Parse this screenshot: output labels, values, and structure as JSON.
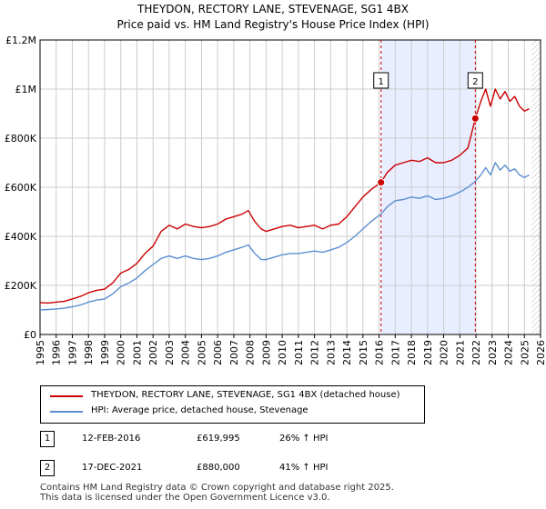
{
  "title_line1": "THEYDON, RECTORY LANE, STEVENAGE, SG1 4BX",
  "title_line2": "Price paid vs. HM Land Registry's House Price Index (HPI)",
  "colors": {
    "property": "#cc0000",
    "hpi": "#5b8fd0",
    "shade": "#e8eeff",
    "grid": "#cccccc"
  },
  "chart_data": {
    "type": "line",
    "title": "THEYDON, RECTORY LANE, STEVENAGE, SG1 4BX",
    "subtitle": "Price paid vs. HM Land Registry's House Price Index (HPI)",
    "xlim": [
      1995,
      2026
    ],
    "ylim": [
      0,
      1200000
    ],
    "yticks": [
      0,
      200000,
      400000,
      600000,
      800000,
      1000000,
      1200000
    ],
    "ytick_labels": [
      "£0",
      "£200K",
      "£400K",
      "£600K",
      "£800K",
      "£1M",
      "£1.2M"
    ],
    "xticks": [
      "1995",
      "1996",
      "1997",
      "1998",
      "1999",
      "2000",
      "2001",
      "2002",
      "2003",
      "2004",
      "2005",
      "2006",
      "2007",
      "2008",
      "2009",
      "2010",
      "2011",
      "2012",
      "2013",
      "2014",
      "2015",
      "2016",
      "2017",
      "2018",
      "2019",
      "2020",
      "2021",
      "2022",
      "2023",
      "2024",
      "2025",
      "2026"
    ],
    "shaded_region": [
      2016.12,
      2021.96
    ],
    "series": [
      {
        "name": "THEYDON, RECTORY LANE, STEVENAGE, SG1 4BX (detached house)",
        "color": "#cc0000",
        "x": [
          1995.0,
          1995.5,
          1996.0,
          1996.5,
          1997.0,
          1997.5,
          1998.0,
          1998.5,
          1999.0,
          1999.5,
          2000.0,
          2000.5,
          2001.0,
          2001.5,
          2002.0,
          2002.5,
          2003.0,
          2003.5,
          2004.0,
          2004.5,
          2005.0,
          2005.5,
          2006.0,
          2006.5,
          2007.0,
          2007.5,
          2007.9,
          2008.3,
          2008.7,
          2009.0,
          2009.5,
          2010.0,
          2010.5,
          2011.0,
          2011.5,
          2012.0,
          2012.5,
          2013.0,
          2013.5,
          2014.0,
          2014.5,
          2015.0,
          2015.5,
          2016.12,
          2016.5,
          2017.0,
          2017.5,
          2018.0,
          2018.5,
          2019.0,
          2019.5,
          2020.0,
          2020.5,
          2021.0,
          2021.5,
          2021.96,
          2022.3,
          2022.6,
          2022.9,
          2023.2,
          2023.5,
          2023.8,
          2024.1,
          2024.4,
          2024.7,
          2025.0,
          2025.3
        ],
        "values": [
          130000,
          128000,
          132000,
          135000,
          145000,
          155000,
          170000,
          180000,
          185000,
          210000,
          250000,
          265000,
          290000,
          330000,
          360000,
          420000,
          445000,
          430000,
          450000,
          440000,
          435000,
          440000,
          450000,
          470000,
          480000,
          490000,
          505000,
          460000,
          430000,
          420000,
          430000,
          440000,
          445000,
          435000,
          440000,
          445000,
          430000,
          445000,
          450000,
          480000,
          520000,
          560000,
          590000,
          619995,
          660000,
          690000,
          700000,
          710000,
          705000,
          720000,
          700000,
          700000,
          710000,
          730000,
          760000,
          880000,
          950000,
          1000000,
          930000,
          1000000,
          960000,
          990000,
          950000,
          970000,
          930000,
          910000,
          920000
        ]
      },
      {
        "name": "HPI: Average price, detached house, Stevenage",
        "color": "#5b8fd0",
        "x": [
          1995.0,
          1995.5,
          1996.0,
          1996.5,
          1997.0,
          1997.5,
          1998.0,
          1998.5,
          1999.0,
          1999.5,
          2000.0,
          2000.5,
          2001.0,
          2001.5,
          2002.0,
          2002.5,
          2003.0,
          2003.5,
          2004.0,
          2004.5,
          2005.0,
          2005.5,
          2006.0,
          2006.5,
          2007.0,
          2007.5,
          2007.9,
          2008.3,
          2008.7,
          2009.0,
          2009.5,
          2010.0,
          2010.5,
          2011.0,
          2011.5,
          2012.0,
          2012.5,
          2013.0,
          2013.5,
          2014.0,
          2014.5,
          2015.0,
          2015.5,
          2016.12,
          2016.5,
          2017.0,
          2017.5,
          2018.0,
          2018.5,
          2019.0,
          2019.5,
          2020.0,
          2020.5,
          2021.0,
          2021.5,
          2021.96,
          2022.3,
          2022.6,
          2022.9,
          2023.2,
          2023.5,
          2023.8,
          2024.1,
          2024.4,
          2024.7,
          2025.0,
          2025.3
        ],
        "values": [
          100000,
          102000,
          104000,
          107000,
          113000,
          120000,
          132000,
          140000,
          145000,
          165000,
          195000,
          210000,
          230000,
          260000,
          285000,
          310000,
          320000,
          310000,
          320000,
          310000,
          305000,
          310000,
          320000,
          335000,
          345000,
          355000,
          365000,
          330000,
          305000,
          305000,
          315000,
          325000,
          330000,
          330000,
          335000,
          340000,
          335000,
          345000,
          355000,
          375000,
          400000,
          430000,
          460000,
          491000,
          520000,
          545000,
          550000,
          560000,
          555000,
          565000,
          550000,
          555000,
          565000,
          580000,
          600000,
          624000,
          650000,
          680000,
          650000,
          700000,
          670000,
          690000,
          665000,
          675000,
          650000,
          640000,
          650000
        ]
      }
    ],
    "markers": [
      {
        "label": "1",
        "x": 2016.12,
        "value": 619995
      },
      {
        "label": "2",
        "x": 2021.96,
        "value": 880000
      }
    ]
  },
  "legend": {
    "property_label": "THEYDON, RECTORY LANE, STEVENAGE, SG1 4BX (detached house)",
    "hpi_label": "HPI: Average price, detached house, Stevenage"
  },
  "sales": [
    {
      "num": "1",
      "date": "12-FEB-2016",
      "price": "£619,995",
      "hpi": "26% ↑ HPI"
    },
    {
      "num": "2",
      "date": "17-DEC-2021",
      "price": "£880,000",
      "hpi": "41% ↑ HPI"
    }
  ],
  "footer": {
    "line1": "Contains HM Land Registry data © Crown copyright and database right 2025.",
    "line2": "This data is licensed under the Open Government Licence v3.0."
  }
}
